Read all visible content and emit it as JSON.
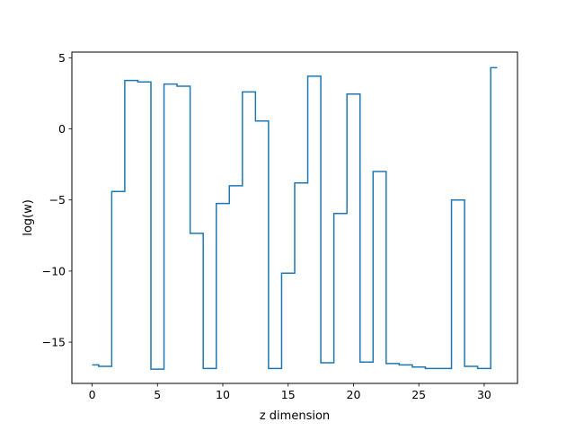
{
  "chart_data": {
    "type": "line",
    "drawstyle": "steps-mid",
    "title": "",
    "xlabel": "z dimension",
    "ylabel": "log(w)",
    "xlim": [
      -1.55,
      32.55
    ],
    "ylim": [
      -17.9,
      5.4
    ],
    "xticks": [
      0,
      5,
      10,
      15,
      20,
      25,
      30
    ],
    "yticks": [
      -15,
      -10,
      -5,
      0,
      5
    ],
    "ytick_labels": [
      "−15",
      "−10",
      "−5",
      "0",
      "5"
    ],
    "grid": false,
    "line_color": "#1f77b4",
    "series": [
      {
        "x": [
          0,
          1,
          2,
          3,
          4,
          5,
          6,
          7,
          8,
          9,
          10,
          11,
          12,
          13,
          14,
          15,
          16,
          17,
          18,
          19,
          20,
          21,
          22,
          23,
          24,
          25,
          26,
          27,
          28,
          29,
          30,
          31
        ],
        "y": [
          -16.6,
          -16.7,
          -4.4,
          3.4,
          3.3,
          -16.9,
          3.15,
          3.0,
          -7.35,
          -16.85,
          -5.25,
          -4.0,
          2.6,
          0.55,
          -16.85,
          -10.15,
          -3.8,
          3.7,
          -16.45,
          -5.95,
          2.45,
          -16.4,
          -3.0,
          -16.5,
          -16.6,
          -16.75,
          -16.85,
          -16.85,
          -5.0,
          -16.7,
          -16.85,
          4.3
        ]
      }
    ]
  }
}
